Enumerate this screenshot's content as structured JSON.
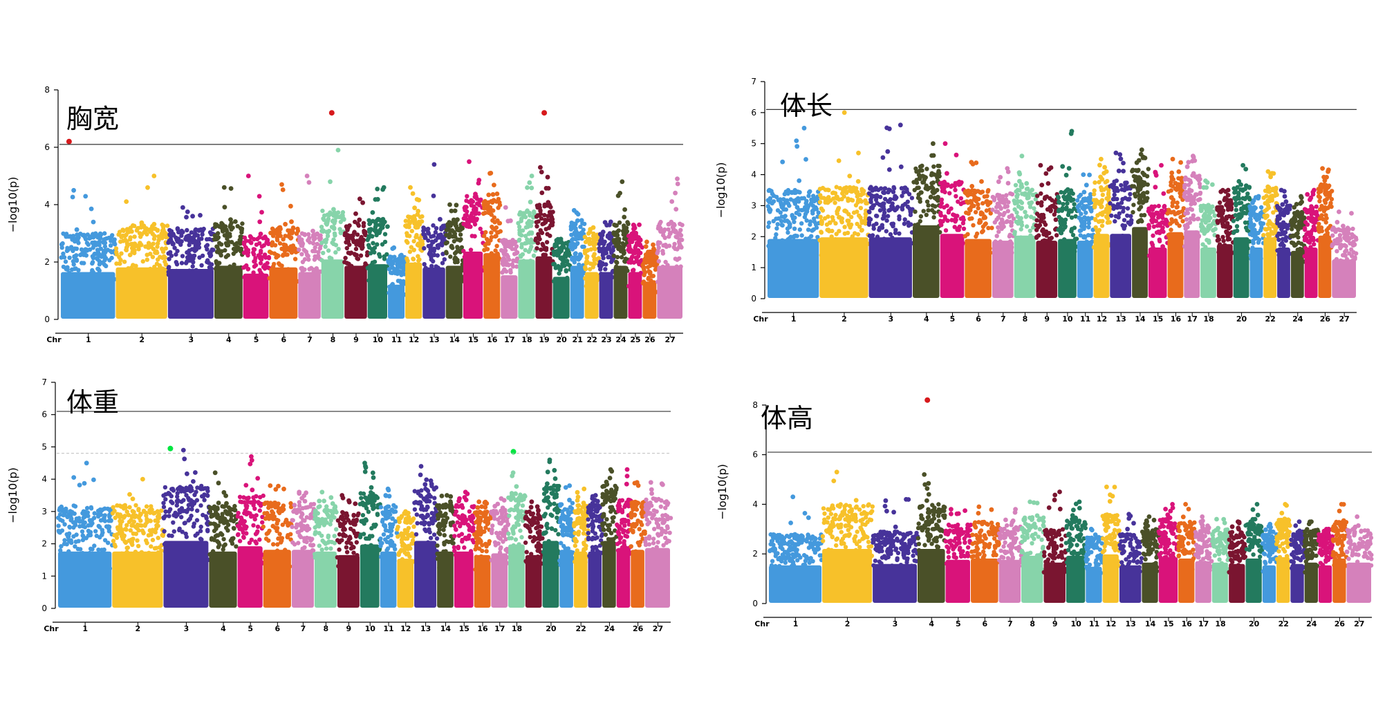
{
  "chart_data": [
    {
      "type": "scatter",
      "title": "胸宽",
      "ylabel": "−log10(p)",
      "xlabel": "Chr",
      "ylim": [
        0,
        8
      ],
      "y_ticks": [
        0,
        2,
        4,
        6,
        8
      ],
      "threshold": 6.1,
      "chromosomes": [
        "1",
        "2",
        "3",
        "4",
        "5",
        "6",
        "7",
        "8",
        "9",
        "10",
        "11",
        "12",
        "13",
        "14",
        "15",
        "16",
        "17",
        "18",
        "19",
        "20",
        "21",
        "22",
        "23",
        "24",
        "25",
        "26",
        "27"
      ],
      "x_tick_labels": [
        "Chr",
        "1",
        "2",
        "3",
        "4",
        "5",
        "6",
        "7",
        "8",
        "9",
        "10",
        "11",
        "12",
        "13",
        "14",
        "15",
        "16",
        "17",
        "18",
        "19",
        "20",
        "21",
        "22",
        "23",
        "24",
        "25",
        "26",
        "27"
      ],
      "chr_bands": [
        {
          "chr": "1",
          "typical": 3.0,
          "max": 4.5
        },
        {
          "chr": "2",
          "typical": 3.3,
          "max": 5.0
        },
        {
          "chr": "3",
          "typical": 3.2,
          "max": 3.9
        },
        {
          "chr": "4",
          "typical": 3.4,
          "max": 4.6
        },
        {
          "chr": "5",
          "typical": 2.9,
          "max": 5.0
        },
        {
          "chr": "6",
          "typical": 3.3,
          "max": 4.7
        },
        {
          "chr": "7",
          "typical": 3.0,
          "max": 5.0
        },
        {
          "chr": "8",
          "typical": 3.8,
          "max": 5.9
        },
        {
          "chr": "9",
          "typical": 3.4,
          "max": 4.2
        },
        {
          "chr": "10",
          "typical": 3.5,
          "max": 4.6
        },
        {
          "chr": "11",
          "typical": 2.2,
          "max": 2.5
        },
        {
          "chr": "12",
          "typical": 3.6,
          "max": 4.6
        },
        {
          "chr": "13",
          "typical": 3.3,
          "max": 5.4
        },
        {
          "chr": "14",
          "typical": 3.4,
          "max": 4.0
        },
        {
          "chr": "15",
          "typical": 4.3,
          "max": 5.5
        },
        {
          "chr": "16",
          "typical": 4.2,
          "max": 5.1
        },
        {
          "chr": "17",
          "typical": 2.8,
          "max": 3.9
        },
        {
          "chr": "18",
          "typical": 3.8,
          "max": 5.0
        },
        {
          "chr": "19",
          "typical": 4.0,
          "max": 5.3
        },
        {
          "chr": "20",
          "typical": 2.7,
          "max": 2.8
        },
        {
          "chr": "21",
          "typical": 3.4,
          "max": 3.8
        },
        {
          "chr": "22",
          "typical": 3.0,
          "max": 3.2
        },
        {
          "chr": "23",
          "typical": 3.0,
          "max": 3.4
        },
        {
          "chr": "24",
          "typical": 3.4,
          "max": 4.8
        },
        {
          "chr": "25",
          "typical": 3.0,
          "max": 3.3
        },
        {
          "chr": "26",
          "typical": 2.4,
          "max": 2.7
        },
        {
          "chr": "27",
          "typical": 3.4,
          "max": 4.9
        }
      ],
      "highlight_points": [
        {
          "chr": "1",
          "pos": 0.15,
          "y": 6.2,
          "color": "#d7191c"
        },
        {
          "chr": "8",
          "pos": 0.45,
          "y": 7.2,
          "color": "#d7191c"
        },
        {
          "chr": "19",
          "pos": 0.5,
          "y": 7.2,
          "color": "#d7191c"
        }
      ]
    },
    {
      "type": "scatter",
      "title": "体长",
      "ylabel": "−log10(p)",
      "xlabel": "Chr",
      "ylim": [
        0,
        7
      ],
      "y_ticks": [
        0,
        1,
        2,
        3,
        4,
        5,
        6,
        7
      ],
      "threshold": 6.1,
      "chromosomes": [
        "1",
        "2",
        "3",
        "4",
        "5",
        "6",
        "7",
        "8",
        "9",
        "10",
        "11",
        "12",
        "13",
        "14",
        "15",
        "16",
        "17",
        "18",
        "19",
        "20",
        "21",
        "22",
        "23",
        "24",
        "25",
        "26",
        "27"
      ],
      "x_tick_labels": [
        "Chr",
        "1",
        "2",
        "3",
        "4",
        "5",
        "6",
        "7",
        "8",
        "9",
        "10",
        "11",
        "12",
        "13",
        "14",
        "15",
        "16",
        "17",
        "18",
        "20",
        "22",
        "24",
        "26",
        "27"
      ],
      "chr_bands": [
        {
          "chr": "1",
          "typical": 3.5,
          "max": 5.5
        },
        {
          "chr": "2",
          "typical": 3.6,
          "max": 6.0
        },
        {
          "chr": "3",
          "typical": 3.6,
          "max": 5.6
        },
        {
          "chr": "4",
          "typical": 4.3,
          "max": 5.0
        },
        {
          "chr": "5",
          "typical": 3.8,
          "max": 5.0
        },
        {
          "chr": "6",
          "typical": 3.5,
          "max": 4.4
        },
        {
          "chr": "7",
          "typical": 3.4,
          "max": 4.2
        },
        {
          "chr": "8",
          "typical": 3.7,
          "max": 4.6
        },
        {
          "chr": "9",
          "typical": 3.4,
          "max": 4.3
        },
        {
          "chr": "10",
          "typical": 3.5,
          "max": 5.4
        },
        {
          "chr": "11",
          "typical": 3.4,
          "max": 4.0
        },
        {
          "chr": "12",
          "typical": 3.8,
          "max": 4.5
        },
        {
          "chr": "13",
          "typical": 3.8,
          "max": 4.7
        },
        {
          "chr": "14",
          "typical": 4.2,
          "max": 4.8
        },
        {
          "chr": "15",
          "typical": 3.0,
          "max": 4.3
        },
        {
          "chr": "16",
          "typical": 3.9,
          "max": 4.5
        },
        {
          "chr": "17",
          "typical": 4.0,
          "max": 4.6
        },
        {
          "chr": "18",
          "typical": 3.0,
          "max": 3.8
        },
        {
          "chr": "19",
          "typical": 3.2,
          "max": 3.5
        },
        {
          "chr": "20",
          "typical": 3.6,
          "max": 4.3
        },
        {
          "chr": "21",
          "typical": 3.0,
          "max": 3.3
        },
        {
          "chr": "22",
          "typical": 3.6,
          "max": 4.1
        },
        {
          "chr": "23",
          "typical": 3.0,
          "max": 3.5
        },
        {
          "chr": "24",
          "typical": 2.8,
          "max": 3.3
        },
        {
          "chr": "25",
          "typical": 3.0,
          "max": 3.5
        },
        {
          "chr": "26",
          "typical": 3.7,
          "max": 4.2
        },
        {
          "chr": "27",
          "typical": 2.3,
          "max": 2.8
        }
      ],
      "highlight_points": []
    },
    {
      "type": "scatter",
      "title": "体重",
      "ylabel": "−log10(p)",
      "xlabel": "Chr",
      "ylim": [
        0,
        7
      ],
      "y_ticks": [
        0,
        1,
        2,
        3,
        4,
        5,
        6,
        7
      ],
      "threshold": 6.1,
      "suggestive_threshold": 4.8,
      "chromosomes": [
        "1",
        "2",
        "3",
        "4",
        "5",
        "6",
        "7",
        "8",
        "9",
        "10",
        "11",
        "12",
        "13",
        "14",
        "15",
        "16",
        "17",
        "18",
        "19",
        "20",
        "21",
        "22",
        "23",
        "24",
        "25",
        "26",
        "27"
      ],
      "x_tick_labels": [
        "Chr",
        "1",
        "2",
        "3",
        "4",
        "5",
        "6",
        "7",
        "8",
        "9",
        "10",
        "11",
        "12",
        "13",
        "14",
        "15",
        "16",
        "17",
        "18",
        "20",
        "22",
        "24",
        "26",
        "27"
      ],
      "chr_bands": [
        {
          "chr": "1",
          "typical": 3.2,
          "max": 4.5
        },
        {
          "chr": "2",
          "typical": 3.2,
          "max": 4.0
        },
        {
          "chr": "3",
          "typical": 3.8,
          "max": 4.9
        },
        {
          "chr": "4",
          "typical": 3.2,
          "max": 4.2
        },
        {
          "chr": "5",
          "typical": 3.5,
          "max": 4.7
        },
        {
          "chr": "6",
          "typical": 3.3,
          "max": 3.8
        },
        {
          "chr": "7",
          "typical": 3.3,
          "max": 3.6
        },
        {
          "chr": "8",
          "typical": 3.2,
          "max": 3.6
        },
        {
          "chr": "9",
          "typical": 3.0,
          "max": 3.5
        },
        {
          "chr": "10",
          "typical": 3.6,
          "max": 4.5
        },
        {
          "chr": "11",
          "typical": 3.2,
          "max": 3.7
        },
        {
          "chr": "12",
          "typical": 2.8,
          "max": 3.0
        },
        {
          "chr": "13",
          "typical": 3.8,
          "max": 4.4
        },
        {
          "chr": "14",
          "typical": 3.2,
          "max": 3.5
        },
        {
          "chr": "15",
          "typical": 3.2,
          "max": 3.6
        },
        {
          "chr": "16",
          "typical": 3.0,
          "max": 3.3
        },
        {
          "chr": "17",
          "typical": 3.1,
          "max": 3.4
        },
        {
          "chr": "18",
          "typical": 3.6,
          "max": 4.2
        },
        {
          "chr": "19",
          "typical": 3.0,
          "max": 3.3
        },
        {
          "chr": "20",
          "typical": 3.8,
          "max": 4.6
        },
        {
          "chr": "21",
          "typical": 3.3,
          "max": 3.8
        },
        {
          "chr": "22",
          "typical": 3.2,
          "max": 3.7
        },
        {
          "chr": "23",
          "typical": 3.2,
          "max": 3.5
        },
        {
          "chr": "24",
          "typical": 3.8,
          "max": 4.3
        },
        {
          "chr": "25",
          "typical": 3.4,
          "max": 4.3
        },
        {
          "chr": "26",
          "typical": 3.3,
          "max": 3.9
        },
        {
          "chr": "27",
          "typical": 3.4,
          "max": 3.9
        }
      ],
      "highlight_points": [
        {
          "chr": "3",
          "pos": 0.15,
          "y": 4.95,
          "color": "#00e640"
        },
        {
          "chr": "18",
          "pos": 0.3,
          "y": 4.85,
          "color": "#00e640"
        }
      ]
    },
    {
      "type": "scatter",
      "title": "体高",
      "ylabel": "−log10(p)",
      "xlabel": "Chr",
      "ylim": [
        0,
        9
      ],
      "y_ticks": [
        0,
        2,
        4,
        6,
        8
      ],
      "threshold": 6.1,
      "chromosomes": [
        "1",
        "2",
        "3",
        "4",
        "5",
        "6",
        "7",
        "8",
        "9",
        "10",
        "11",
        "12",
        "13",
        "14",
        "15",
        "16",
        "17",
        "18",
        "19",
        "20",
        "21",
        "22",
        "23",
        "24",
        "25",
        "26",
        "27"
      ],
      "x_tick_labels": [
        "Chr",
        "1",
        "2",
        "3",
        "4",
        "5",
        "6",
        "7",
        "8",
        "9",
        "10",
        "11",
        "12",
        "13",
        "14",
        "15",
        "16",
        "17",
        "18",
        "20",
        "22",
        "24",
        "26",
        "27"
      ],
      "chr_bands": [
        {
          "chr": "1",
          "typical": 2.8,
          "max": 4.3
        },
        {
          "chr": "2",
          "typical": 4.0,
          "max": 5.3
        },
        {
          "chr": "3",
          "typical": 2.9,
          "max": 4.2
        },
        {
          "chr": "4",
          "typical": 4.0,
          "max": 5.2
        },
        {
          "chr": "5",
          "typical": 3.2,
          "max": 3.8
        },
        {
          "chr": "6",
          "typical": 3.3,
          "max": 3.9
        },
        {
          "chr": "7",
          "typical": 3.2,
          "max": 3.8
        },
        {
          "chr": "8",
          "typical": 3.5,
          "max": 4.1
        },
        {
          "chr": "9",
          "typical": 3.0,
          "max": 4.5
        },
        {
          "chr": "10",
          "typical": 3.5,
          "max": 4.1
        },
        {
          "chr": "11",
          "typical": 2.7,
          "max": 3.0
        },
        {
          "chr": "12",
          "typical": 3.6,
          "max": 4.7
        },
        {
          "chr": "13",
          "typical": 2.8,
          "max": 3.6
        },
        {
          "chr": "14",
          "typical": 3.0,
          "max": 3.5
        },
        {
          "chr": "15",
          "typical": 3.4,
          "max": 4.0
        },
        {
          "chr": "16",
          "typical": 3.3,
          "max": 4.0
        },
        {
          "chr": "17",
          "typical": 3.1,
          "max": 3.5
        },
        {
          "chr": "18",
          "typical": 3.0,
          "max": 3.4
        },
        {
          "chr": "19",
          "typical": 2.9,
          "max": 3.3
        },
        {
          "chr": "20",
          "typical": 3.3,
          "max": 4.0
        },
        {
          "chr": "21",
          "typical": 2.8,
          "max": 3.2
        },
        {
          "chr": "22",
          "typical": 3.4,
          "max": 4.0
        },
        {
          "chr": "23",
          "typical": 2.9,
          "max": 3.3
        },
        {
          "chr": "24",
          "typical": 3.0,
          "max": 3.3
        },
        {
          "chr": "25",
          "typical": 2.8,
          "max": 3.0
        },
        {
          "chr": "26",
          "typical": 3.3,
          "max": 4.0
        },
        {
          "chr": "27",
          "typical": 3.0,
          "max": 3.5
        }
      ],
      "highlight_points": [
        {
          "chr": "4",
          "pos": 0.35,
          "y": 8.2,
          "color": "#d7191c"
        }
      ]
    }
  ],
  "colors": {
    "axis": "#000000",
    "threshold_line": "#333333",
    "suggestive_line": "#bbbbbb",
    "chr_palette": [
      "#4499dd",
      "#f7c12a",
      "#47339a",
      "#4a5028",
      "#d9137a",
      "#e86b1c",
      "#d581bb",
      "#87d4aa",
      "#7a1530",
      "#237a5e",
      "#4499dd",
      "#f7c12a",
      "#47339a",
      "#4a5028",
      "#d9137a",
      "#e86b1c",
      "#d581bb",
      "#87d4aa",
      "#7a1530",
      "#237a5e",
      "#4499dd",
      "#f7c12a",
      "#47339a",
      "#4a5028",
      "#d9137a",
      "#e86b1c",
      "#d581bb"
    ]
  }
}
